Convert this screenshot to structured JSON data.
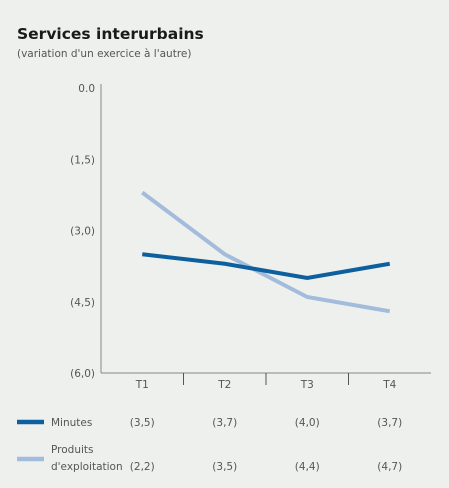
{
  "chart_data": {
    "type": "line",
    "title": "Services interurbains",
    "subtitle": "(variation d'un exercice à l'autre)",
    "categories": [
      "T1",
      "T2",
      "T3",
      "T4"
    ],
    "y_ticks": [
      "0.0",
      "(1,5)",
      "(3,0)",
      "(4,5)",
      "(6,0)"
    ],
    "ylim": [
      -6.0,
      0.0
    ],
    "grid": false,
    "legend_position": "bottom",
    "series": [
      {
        "name": "Minutes",
        "name_lines": [
          "Minutes"
        ],
        "color": "#0e5f9e",
        "values": [
          -3.5,
          -3.7,
          -4.0,
          -3.7
        ],
        "labels": [
          "(3,5)",
          "(3,7)",
          "(4,0)",
          "(3,7)"
        ]
      },
      {
        "name": "Produits d'exploitation",
        "name_lines": [
          "Produits",
          "d'exploitation"
        ],
        "color": "#a4bcdc",
        "values": [
          -2.2,
          -3.5,
          -4.4,
          -4.7
        ],
        "labels": [
          "(2,2)",
          "(3,5)",
          "(4,4)",
          "(4,7)"
        ]
      }
    ]
  }
}
